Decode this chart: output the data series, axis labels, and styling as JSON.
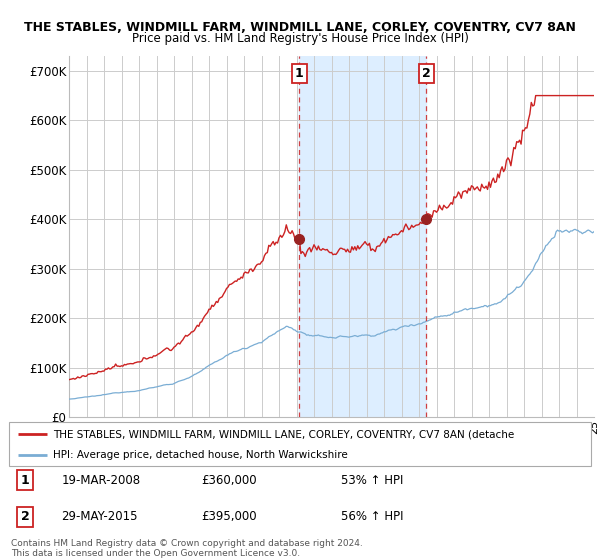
{
  "title1": "THE STABLES, WINDMILL FARM, WINDMILL LANE, CORLEY, COVENTRY, CV7 8AN",
  "title2": "Price paid vs. HM Land Registry's House Price Index (HPI)",
  "ylim": [
    0,
    730000
  ],
  "yticks": [
    0,
    100000,
    200000,
    300000,
    400000,
    500000,
    600000,
    700000
  ],
  "ytick_labels": [
    "£0",
    "£100K",
    "£200K",
    "£300K",
    "£400K",
    "£500K",
    "£600K",
    "£700K"
  ],
  "sale1_date_idx": 158,
  "sale1_price": 360000,
  "sale1_label": "1",
  "sale1_date_str": "19-MAR-2008",
  "sale1_pct": "53% ↑ HPI",
  "sale2_date_idx": 245,
  "sale2_price": 395000,
  "sale2_label": "2",
  "sale2_date_str": "29-MAY-2015",
  "sale2_pct": "56% ↑ HPI",
  "legend_label1": "THE STABLES, WINDMILL FARM, WINDMILL LANE, CORLEY, COVENTRY, CV7 8AN (detache",
  "legend_label2": "HPI: Average price, detached house, North Warwickshire",
  "footer": "Contains HM Land Registry data © Crown copyright and database right 2024.\nThis data is licensed under the Open Government Licence v3.0.",
  "line1_color": "#cc2222",
  "line2_color": "#7aadd4",
  "shade_color": "#ddeeff",
  "vline_color": "#cc2222",
  "marker_color": "#992222",
  "box_color": "#cc2222",
  "n_months": 361,
  "start_year": 1995,
  "end_year": 2024
}
